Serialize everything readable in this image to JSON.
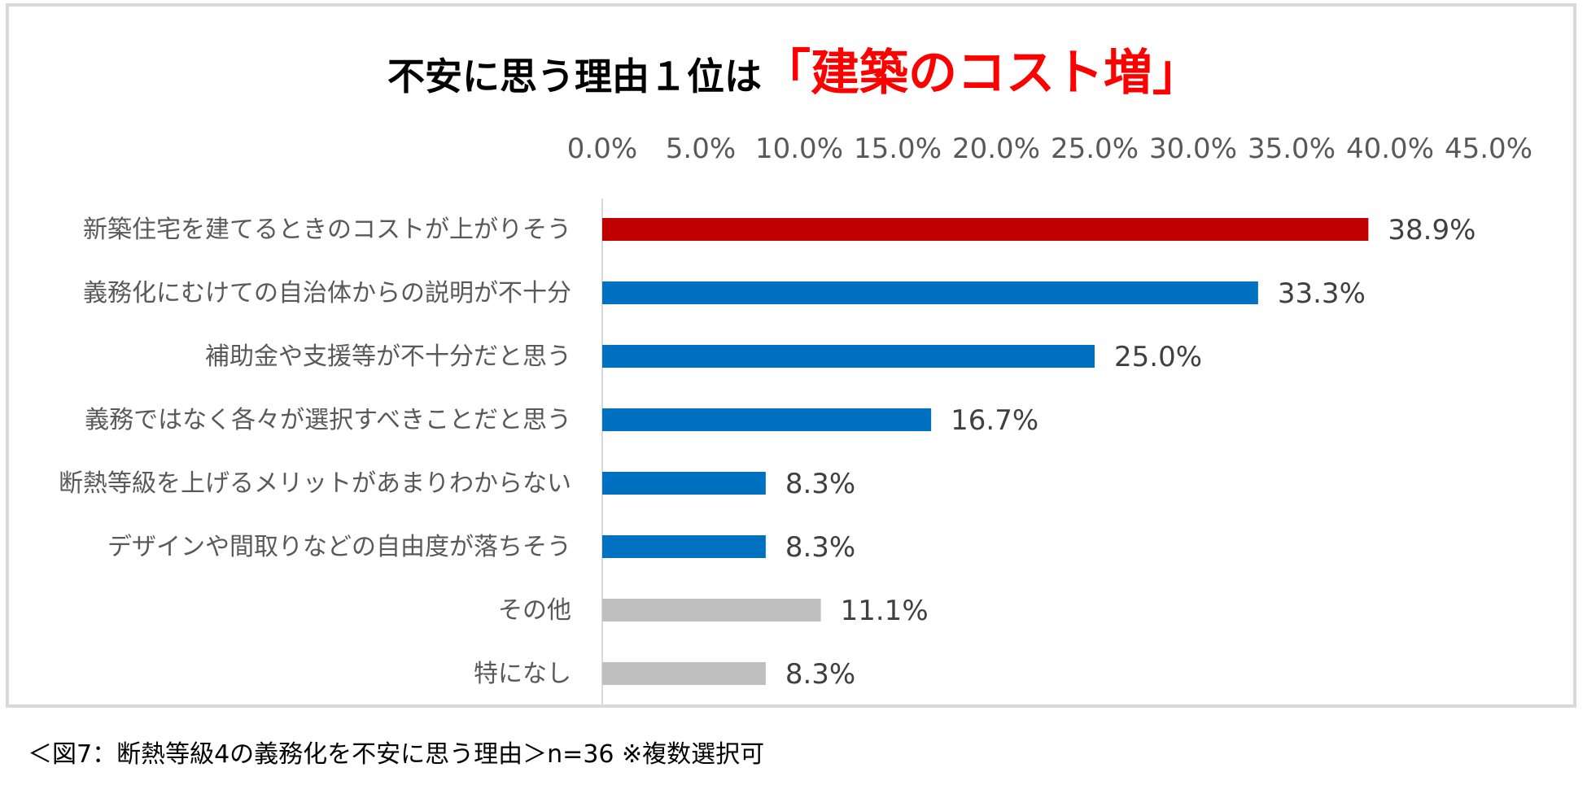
{
  "title": {
    "main": "不安に思う理由１位は",
    "highlight": "「建築のコスト増」",
    "highlight_color": "#ff0000"
  },
  "caption": "＜図7：断熱等級4の義務化を不安に思う理由＞n=36 ※複数選択可",
  "chart_data": {
    "type": "bar",
    "orientation": "horizontal",
    "title": "不安に思う理由１位は「建築のコスト増」",
    "categories": [
      "新築住宅を建てるときのコストが上がりそう",
      "義務化にむけての自治体からの説明が不十分",
      "補助金や支援等が不十分だと思う",
      "義務ではなく各々が選択すべきことだと思う",
      "断熱等級を上げるメリットがあまりわからない",
      "デザインや間取りなどの自由度が落ちそう",
      "その他",
      "特になし"
    ],
    "values": [
      38.9,
      33.3,
      25.0,
      16.7,
      8.3,
      8.3,
      11.1,
      8.3
    ],
    "value_labels": [
      "38.9%",
      "33.3%",
      "25.0%",
      "16.7%",
      "8.3%",
      "8.3%",
      "11.1%",
      "8.3%"
    ],
    "bar_colors": [
      "#c00000",
      "#0070c0",
      "#0070c0",
      "#0070c0",
      "#0070c0",
      "#0070c0",
      "#bfbfbf",
      "#bfbfbf"
    ],
    "xlim": [
      0,
      45
    ],
    "xticks": [
      0,
      5,
      10,
      15,
      20,
      25,
      30,
      35,
      40,
      45
    ],
    "xtick_labels": [
      "0.0%",
      "5.0%",
      "10.0%",
      "15.0%",
      "20.0%",
      "25.0%",
      "30.0%",
      "35.0%",
      "40.0%",
      "45.0%"
    ],
    "axis_position": "top",
    "grid": false,
    "xlabel": "",
    "ylabel": ""
  }
}
